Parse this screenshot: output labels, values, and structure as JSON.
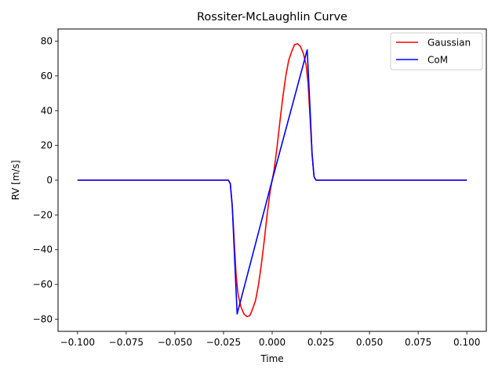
{
  "chart_data": {
    "type": "line",
    "title": "Rossiter-McLaughlin Curve",
    "xlabel": "Time",
    "ylabel": "RV [m/s]",
    "xlim": [
      -0.11,
      0.11
    ],
    "ylim": [
      -87,
      87
    ],
    "xticks": [
      -0.1,
      -0.075,
      -0.05,
      -0.025,
      0.0,
      0.025,
      0.05,
      0.075,
      0.1
    ],
    "xtick_labels": [
      "−0.100",
      "−0.075",
      "−0.050",
      "−0.025",
      "0.000",
      "0.025",
      "0.050",
      "0.075",
      "0.100"
    ],
    "yticks": [
      -80,
      -60,
      -40,
      -20,
      0,
      20,
      40,
      60,
      80
    ],
    "ytick_labels": [
      "−80",
      "−60",
      "−40",
      "−20",
      "0",
      "20",
      "40",
      "60",
      "80"
    ],
    "grid": false,
    "legend_position": "top-right",
    "series": [
      {
        "name": "Gaussian",
        "color": "#ff0000",
        "points": [
          [
            -0.1,
            0
          ],
          [
            -0.0225,
            0
          ],
          [
            -0.0215,
            -2
          ],
          [
            -0.0205,
            -15
          ],
          [
            -0.0195,
            -35
          ],
          [
            -0.0185,
            -55
          ],
          [
            -0.0175,
            -66
          ],
          [
            -0.016,
            -73
          ],
          [
            -0.0145,
            -77
          ],
          [
            -0.013,
            -78.5
          ],
          [
            -0.0115,
            -78
          ],
          [
            -0.01,
            -74
          ],
          [
            -0.0085,
            -69
          ],
          [
            -0.007,
            -60
          ],
          [
            -0.0055,
            -48
          ],
          [
            -0.004,
            -34
          ],
          [
            -0.0025,
            -19
          ],
          [
            -0.001,
            -6
          ],
          [
            0.0,
            0
          ],
          [
            0.001,
            6
          ],
          [
            0.0025,
            19
          ],
          [
            0.004,
            34
          ],
          [
            0.0055,
            48
          ],
          [
            0.007,
            60
          ],
          [
            0.0085,
            69
          ],
          [
            0.01,
            74
          ],
          [
            0.0115,
            78
          ],
          [
            0.013,
            78.5
          ],
          [
            0.0145,
            77
          ],
          [
            0.016,
            73
          ],
          [
            0.0175,
            66
          ],
          [
            0.0185,
            55
          ],
          [
            0.0195,
            35
          ],
          [
            0.0205,
            15
          ],
          [
            0.0215,
            2
          ],
          [
            0.0225,
            0
          ],
          [
            0.1,
            0
          ]
        ]
      },
      {
        "name": "CoM",
        "color": "#0000ff",
        "points": [
          [
            -0.1,
            0
          ],
          [
            -0.0225,
            0
          ],
          [
            -0.0215,
            -2
          ],
          [
            -0.0205,
            -15
          ],
          [
            -0.0195,
            -40
          ],
          [
            -0.018,
            -77
          ],
          [
            0.0,
            0
          ],
          [
            0.018,
            75
          ],
          [
            0.0195,
            40
          ],
          [
            0.0205,
            15
          ],
          [
            0.0215,
            2
          ],
          [
            0.0225,
            0
          ],
          [
            0.1,
            0
          ]
        ]
      }
    ]
  }
}
